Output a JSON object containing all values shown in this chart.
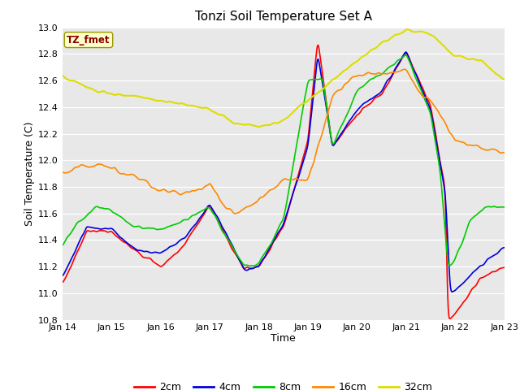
{
  "title": "Tonzi Soil Temperature Set A",
  "xlabel": "Time",
  "ylabel": "Soil Temperature (C)",
  "ylim": [
    10.8,
    13.0
  ],
  "xtick_labels": [
    "Jan 14",
    "Jan 15",
    "Jan 16",
    "Jan 17",
    "Jan 18",
    "Jan 19",
    "Jan 20",
    "Jan 21",
    "Jan 22",
    "Jan 23"
  ],
  "ytick_vals": [
    10.8,
    11.0,
    11.2,
    11.4,
    11.6,
    11.8,
    12.0,
    12.2,
    12.4,
    12.6,
    12.8,
    13.0
  ],
  "colors": {
    "2cm": "#ff0000",
    "4cm": "#0000dd",
    "8cm": "#00cc00",
    "16cm": "#ff8800",
    "32cm": "#dddd00"
  },
  "legend_label": "TZ_fmet",
  "legend_box_facecolor": "#ffffcc",
  "legend_text_color": "#880000",
  "fig_facecolor": "#ffffff",
  "ax_facecolor": "#e8e8e8"
}
